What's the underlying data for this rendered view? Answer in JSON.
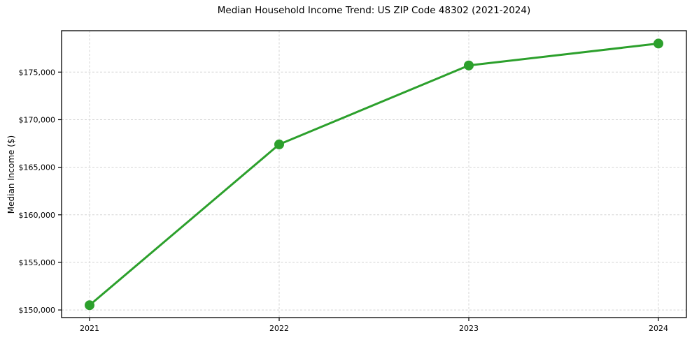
{
  "chart_data": {
    "type": "line",
    "title": "Median Household Income Trend: US ZIP Code 48302 (2021-2024)",
    "xlabel": "",
    "ylabel": "Median Income ($)",
    "categories": [
      "2021",
      "2022",
      "2023",
      "2024"
    ],
    "values": [
      150500,
      167400,
      175700,
      178000
    ],
    "yticks": [
      150000,
      155000,
      160000,
      165000,
      170000,
      175000
    ],
    "ytick_labels": [
      "$150,000",
      "$155,000",
      "$160,000",
      "$165,000",
      "$170,000",
      "$175,000"
    ],
    "ylim": [
      149200,
      179350
    ],
    "grid": true,
    "grid_style": "dashed",
    "legend_position": "none",
    "colors": {
      "line": "#2ca02c",
      "marker": "#2ca02c",
      "grid": "#d4d4d4",
      "spine": "#000000",
      "background": "#ffffff",
      "text": "#000000"
    }
  }
}
